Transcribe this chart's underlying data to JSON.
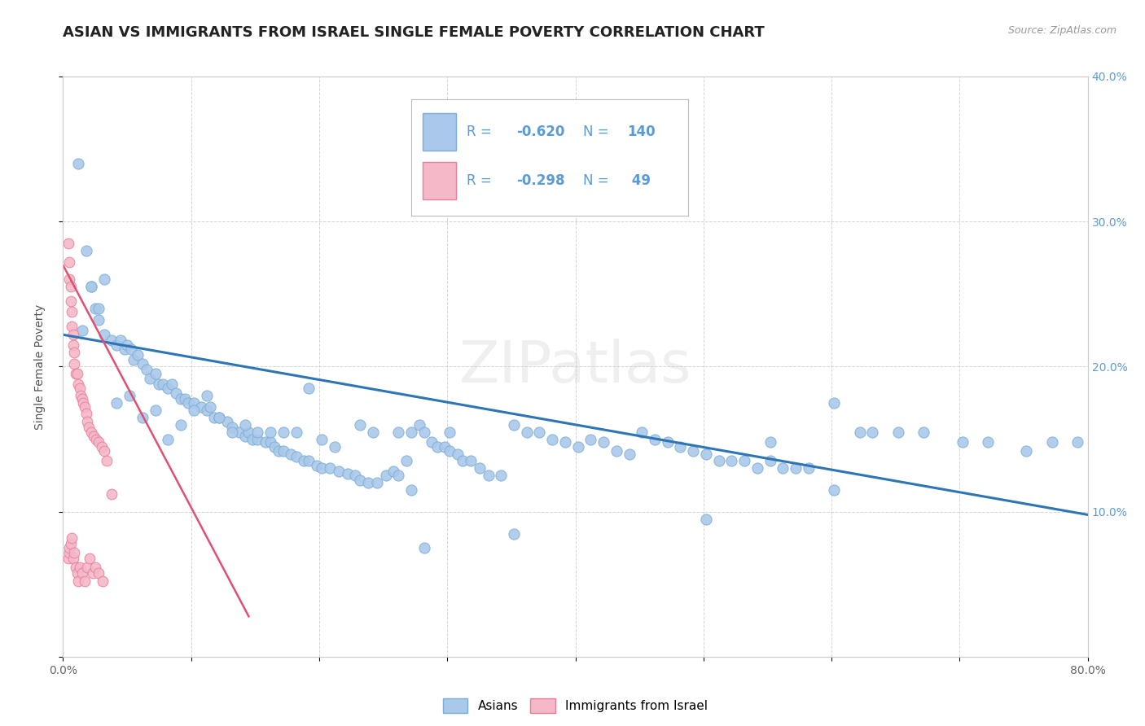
{
  "title": "ASIAN VS IMMIGRANTS FROM ISRAEL SINGLE FEMALE POVERTY CORRELATION CHART",
  "source": "Source: ZipAtlas.com",
  "ylabel": "Single Female Poverty",
  "xlim": [
    0,
    0.8
  ],
  "ylim": [
    0,
    0.4
  ],
  "asian_color": "#aac9ea",
  "israel_color": "#f4b8c8",
  "asian_edge": "#7aadd4",
  "israel_edge": "#e87d96",
  "blue_line_color": "#2e75b6",
  "pink_line_color": "#e05070",
  "legend_asian_label": "Asians",
  "legend_israel_label": "Immigrants from Israel",
  "watermark": "ZIPatlas",
  "title_fontsize": 13,
  "axis_label_fontsize": 10,
  "tick_fontsize": 10,
  "legend_fontsize": 12,
  "right_tick_color": "#5b9bd5",
  "asian_scatter_x": [
    0.012,
    0.018,
    0.022,
    0.025,
    0.028,
    0.032,
    0.038,
    0.042,
    0.045,
    0.048,
    0.05,
    0.053,
    0.055,
    0.058,
    0.062,
    0.065,
    0.068,
    0.072,
    0.075,
    0.078,
    0.082,
    0.085,
    0.088,
    0.092,
    0.095,
    0.098,
    0.102,
    0.108,
    0.112,
    0.115,
    0.118,
    0.122,
    0.128,
    0.132,
    0.138,
    0.142,
    0.145,
    0.148,
    0.152,
    0.158,
    0.162,
    0.165,
    0.168,
    0.172,
    0.178,
    0.182,
    0.188,
    0.192,
    0.198,
    0.202,
    0.208,
    0.215,
    0.222,
    0.228,
    0.232,
    0.238,
    0.245,
    0.252,
    0.258,
    0.262,
    0.268,
    0.272,
    0.278,
    0.282,
    0.288,
    0.292,
    0.298,
    0.302,
    0.308,
    0.312,
    0.318,
    0.325,
    0.332,
    0.342,
    0.352,
    0.362,
    0.372,
    0.382,
    0.392,
    0.402,
    0.412,
    0.422,
    0.432,
    0.442,
    0.452,
    0.462,
    0.472,
    0.482,
    0.492,
    0.502,
    0.512,
    0.522,
    0.532,
    0.542,
    0.552,
    0.562,
    0.572,
    0.582,
    0.602,
    0.622,
    0.632,
    0.652,
    0.672,
    0.702,
    0.722,
    0.752,
    0.772,
    0.792,
    0.015,
    0.022,
    0.028,
    0.032,
    0.042,
    0.052,
    0.062,
    0.072,
    0.082,
    0.092,
    0.102,
    0.112,
    0.122,
    0.142,
    0.162,
    0.182,
    0.202,
    0.232,
    0.272,
    0.302,
    0.132,
    0.152,
    0.172,
    0.192,
    0.212,
    0.242,
    0.262,
    0.282,
    0.352,
    0.502,
    0.552,
    0.602
  ],
  "asian_scatter_y": [
    0.34,
    0.28,
    0.255,
    0.24,
    0.232,
    0.222,
    0.218,
    0.215,
    0.218,
    0.212,
    0.215,
    0.212,
    0.205,
    0.208,
    0.202,
    0.198,
    0.192,
    0.195,
    0.188,
    0.188,
    0.185,
    0.188,
    0.182,
    0.178,
    0.178,
    0.175,
    0.175,
    0.172,
    0.17,
    0.172,
    0.165,
    0.165,
    0.162,
    0.158,
    0.155,
    0.152,
    0.155,
    0.15,
    0.15,
    0.148,
    0.148,
    0.145,
    0.142,
    0.142,
    0.14,
    0.138,
    0.135,
    0.135,
    0.132,
    0.13,
    0.13,
    0.128,
    0.126,
    0.125,
    0.122,
    0.12,
    0.12,
    0.125,
    0.128,
    0.125,
    0.135,
    0.155,
    0.16,
    0.155,
    0.148,
    0.145,
    0.145,
    0.142,
    0.14,
    0.135,
    0.135,
    0.13,
    0.125,
    0.125,
    0.16,
    0.155,
    0.155,
    0.15,
    0.148,
    0.145,
    0.15,
    0.148,
    0.142,
    0.14,
    0.155,
    0.15,
    0.148,
    0.145,
    0.142,
    0.14,
    0.135,
    0.135,
    0.135,
    0.13,
    0.135,
    0.13,
    0.13,
    0.13,
    0.115,
    0.155,
    0.155,
    0.155,
    0.155,
    0.148,
    0.148,
    0.142,
    0.148,
    0.148,
    0.225,
    0.255,
    0.24,
    0.26,
    0.175,
    0.18,
    0.165,
    0.17,
    0.15,
    0.16,
    0.17,
    0.18,
    0.165,
    0.16,
    0.155,
    0.155,
    0.15,
    0.16,
    0.115,
    0.155,
    0.155,
    0.155,
    0.155,
    0.185,
    0.145,
    0.155,
    0.155,
    0.075,
    0.085,
    0.095,
    0.148,
    0.175
  ],
  "israel_scatter_x": [
    0.004,
    0.005,
    0.005,
    0.006,
    0.006,
    0.007,
    0.007,
    0.008,
    0.008,
    0.009,
    0.009,
    0.01,
    0.011,
    0.012,
    0.013,
    0.014,
    0.015,
    0.016,
    0.017,
    0.018,
    0.019,
    0.02,
    0.022,
    0.024,
    0.026,
    0.028,
    0.03,
    0.032,
    0.034,
    0.038,
    0.004,
    0.005,
    0.005,
    0.006,
    0.007,
    0.008,
    0.009,
    0.01,
    0.011,
    0.012,
    0.013,
    0.015,
    0.017,
    0.019,
    0.021,
    0.023,
    0.025,
    0.028,
    0.031
  ],
  "israel_scatter_y": [
    0.285,
    0.272,
    0.26,
    0.255,
    0.245,
    0.238,
    0.228,
    0.222,
    0.215,
    0.21,
    0.202,
    0.195,
    0.195,
    0.188,
    0.185,
    0.18,
    0.178,
    0.175,
    0.172,
    0.168,
    0.162,
    0.158,
    0.155,
    0.152,
    0.15,
    0.148,
    0.145,
    0.142,
    0.135,
    0.112,
    0.068,
    0.072,
    0.075,
    0.078,
    0.082,
    0.068,
    0.072,
    0.062,
    0.058,
    0.052,
    0.062,
    0.058,
    0.052,
    0.062,
    0.068,
    0.058,
    0.062,
    0.058,
    0.052
  ],
  "blue_trendline_x0": 0.0,
  "blue_trendline_x1": 0.8,
  "blue_trendline_y0": 0.222,
  "blue_trendline_y1": 0.098,
  "pink_trendline_x0": 0.0,
  "pink_trendline_x1": 0.145,
  "pink_trendline_y0": 0.27,
  "pink_trendline_y1": 0.028
}
